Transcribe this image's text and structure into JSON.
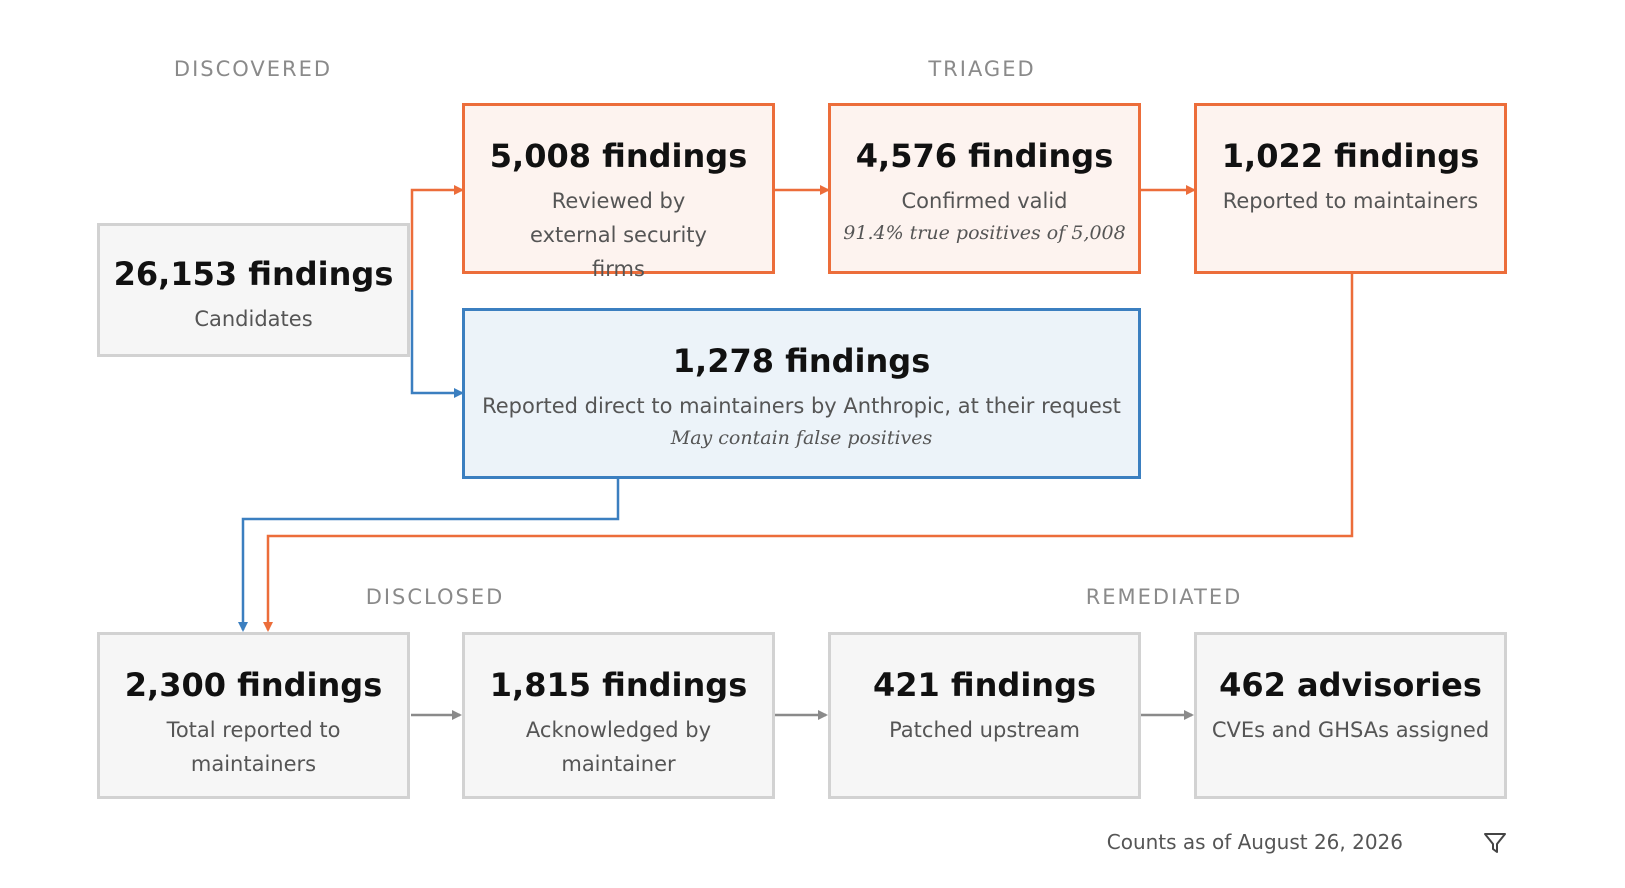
{
  "stages": {
    "discovered": "DISCOVERED",
    "triaged": "TRIAGED",
    "disclosed": "DISCLOSED",
    "remediated": "REMEDIATED"
  },
  "nodes": {
    "candidates": {
      "count": "26,153 findings",
      "desc": "Candidates"
    },
    "reviewed": {
      "count": "5,008 findings",
      "desc": "Reviewed by external security firms"
    },
    "confirmed": {
      "count": "4,576 findings",
      "desc": "Confirmed valid",
      "note": "91.4% true positives of 5,008"
    },
    "reported": {
      "count": "1,022 findings",
      "desc": "Reported to maintainers"
    },
    "direct": {
      "count": "1,278 findings",
      "desc": "Reported direct to maintainers by Anthropic, at their request",
      "note": "May contain false positives"
    },
    "total": {
      "count": "2,300 findings",
      "desc": "Total reported to maintainers"
    },
    "acknowledged": {
      "count": "1,815 findings",
      "desc": "Acknowledged by maintainer"
    },
    "patched": {
      "count": "421 findings",
      "desc": "Patched upstream"
    },
    "advisories": {
      "count": "462 advisories",
      "desc": "CVEs and GHSAs assigned"
    }
  },
  "footer": {
    "text": "Counts as of August 26, 2026",
    "icon": "filter-icon"
  },
  "colors": {
    "orange": "#ec6d3a",
    "blue": "#3b7fc0",
    "gray": "#8a8a8a"
  }
}
